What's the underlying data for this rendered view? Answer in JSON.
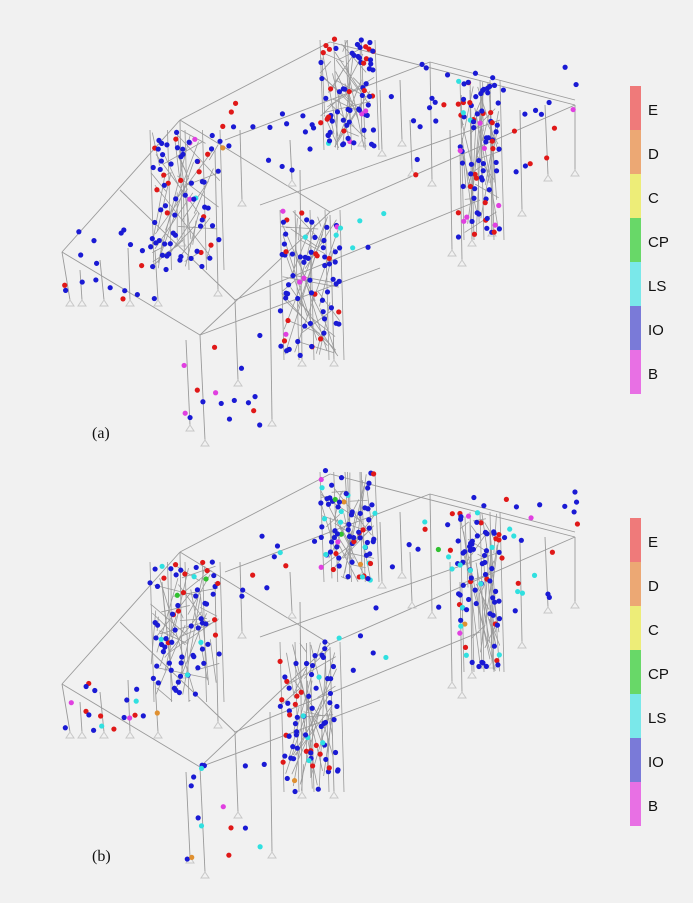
{
  "panels": [
    {
      "id": "a",
      "label": "(a)"
    },
    {
      "id": "b",
      "label": "(b)"
    }
  ],
  "legend": [
    {
      "label": "E",
      "color": "#ef7a7a"
    },
    {
      "label": "D",
      "color": "#eca874"
    },
    {
      "label": "C",
      "color": "#eded78"
    },
    {
      "label": "CP",
      "color": "#68d868"
    },
    {
      "label": "LS",
      "color": "#7ae8ea"
    },
    {
      "label": "IO",
      "color": "#7a7ad8"
    },
    {
      "label": "B",
      "color": "#e870e4"
    }
  ],
  "colors": {
    "frame": "#9a9a9a",
    "support": "#c8c8c8",
    "hinge_io": "#1a1ad4",
    "hinge_e": "#e01818",
    "hinge_b": "#e040e0",
    "hinge_ls": "#30e0e0",
    "hinge_cp": "#30c030",
    "hinge_d": "#e09030"
  }
}
